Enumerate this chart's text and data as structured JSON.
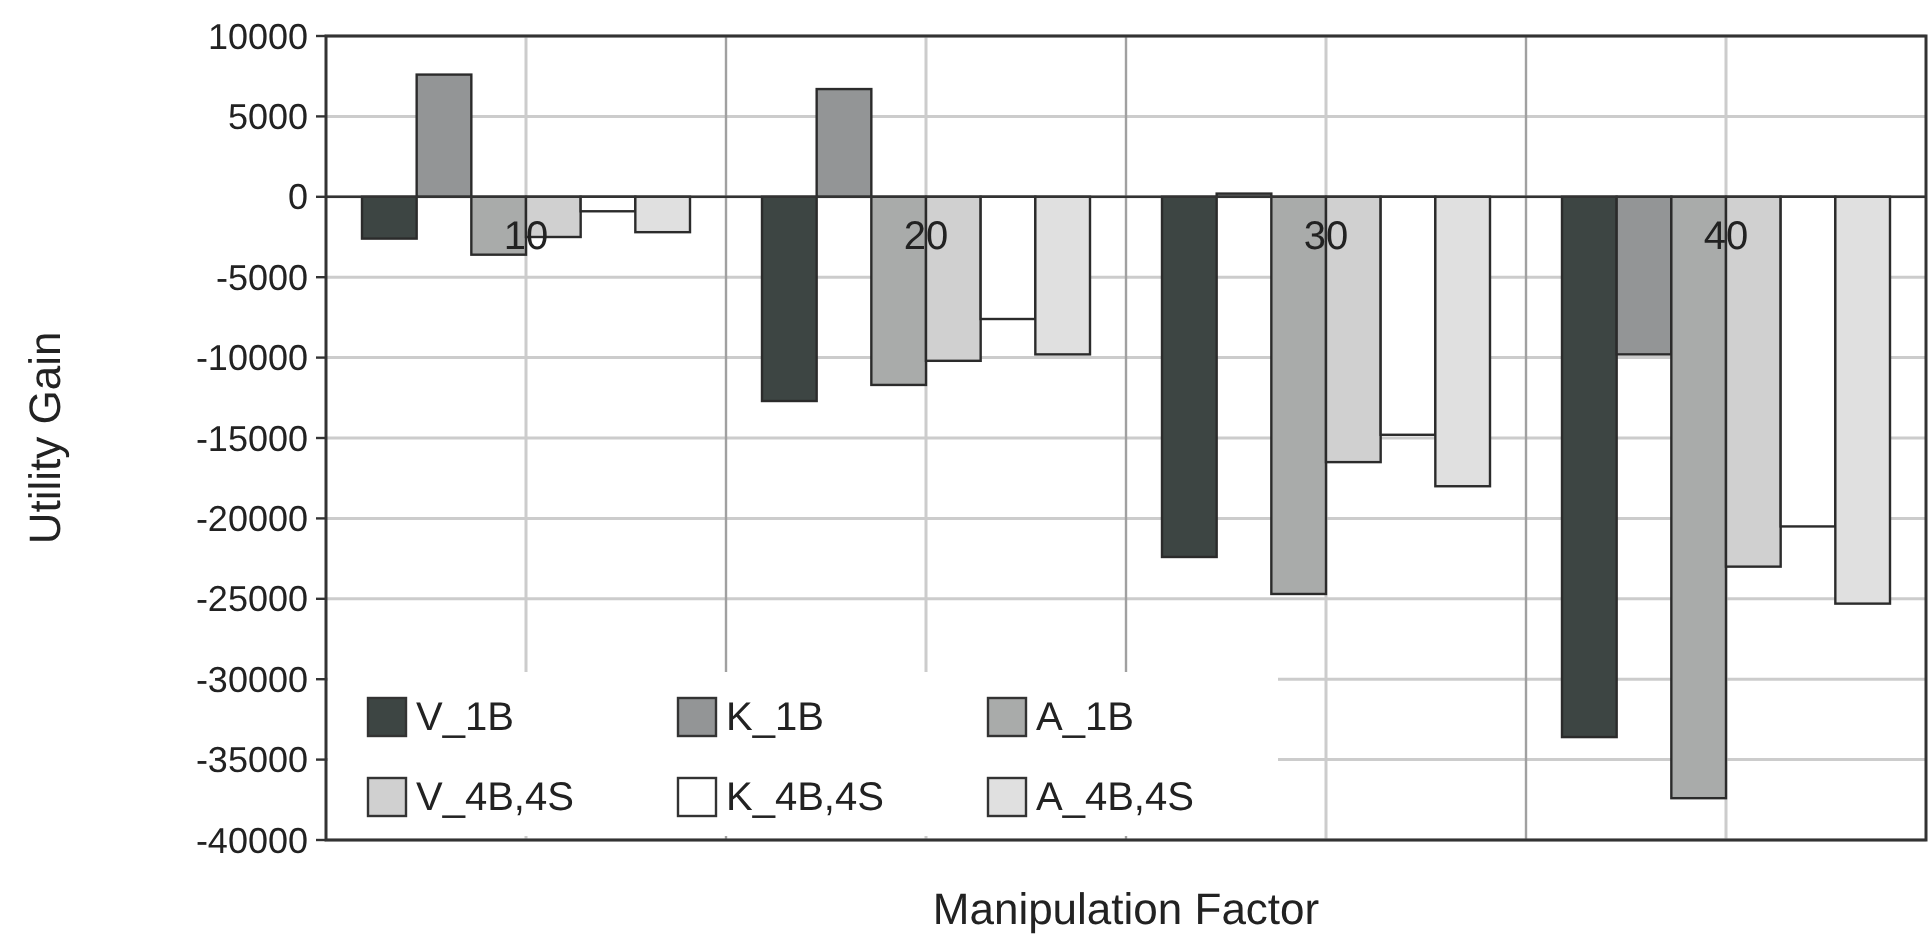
{
  "chart_data": {
    "type": "bar",
    "xlabel": "Manipulation Factor",
    "ylabel": "Utility Gain",
    "categories": [
      "10",
      "20",
      "30",
      "40"
    ],
    "series": [
      {
        "name": "V_1B",
        "color": "#3d4543",
        "values": [
          -2600,
          -12700,
          -22400,
          -33600
        ]
      },
      {
        "name": "K_1B",
        "color": "#939596",
        "values": [
          7600,
          6700,
          200,
          -9800
        ]
      },
      {
        "name": "A_1B",
        "color": "#a9abaa",
        "values": [
          -3600,
          -11700,
          -24700,
          -37400
        ]
      },
      {
        "name": "V_4B,4S",
        "color": "#d0d0d0",
        "values": [
          -2500,
          -10200,
          -16500,
          -23000
        ]
      },
      {
        "name": "K_4B,4S",
        "color": "#ffffff",
        "values": [
          -900,
          -7600,
          -14800,
          -20500
        ]
      },
      {
        "name": "A_4B,4S",
        "color": "#e0e0e0",
        "values": [
          -2200,
          -9800,
          -18000,
          -25300
        ]
      }
    ],
    "ylim": [
      -40000,
      10000
    ],
    "yticks": [
      -40000,
      -35000,
      -30000,
      -25000,
      -20000,
      -15000,
      -10000,
      -5000,
      0,
      5000,
      10000
    ],
    "grid": true,
    "legend": "bottom left"
  }
}
